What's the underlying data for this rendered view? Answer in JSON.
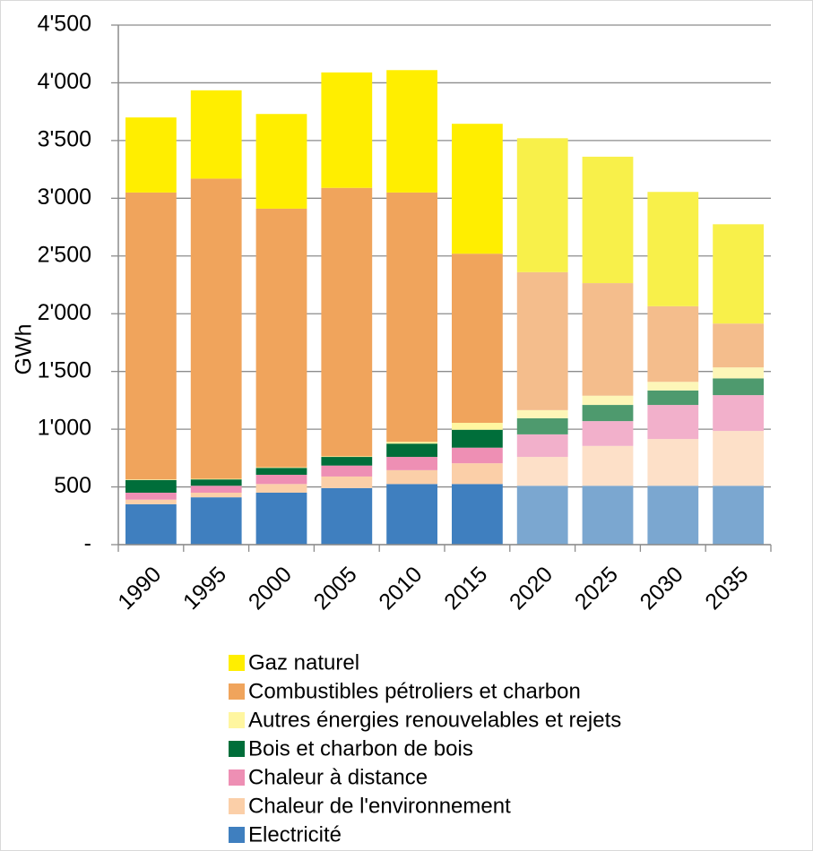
{
  "chart_data": {
    "type": "stacked_bar",
    "y_label": "GWh",
    "categories": [
      "1990",
      "1995",
      "2000",
      "2005",
      "2010",
      "2015",
      "2020",
      "2025",
      "2030",
      "2035"
    ],
    "series": [
      {
        "name": "Gaz naturel",
        "color": "#ffee00",
        "colors": [
          "#ffee00",
          "#ffee00",
          "#ffee00",
          "#ffee00",
          "#ffee00",
          "#ffee00",
          "#f8f04a",
          "#f8f04a",
          "#f8f04a",
          "#f8f04a"
        ],
        "values": [
          650,
          765,
          820,
          1000,
          1060,
          1125,
          1160,
          1095,
          990,
          860
        ]
      },
      {
        "name": "Combustibles pétroliers et charbon",
        "color": "#f0a45c",
        "colors": [
          "#f0a45c",
          "#f0a45c",
          "#f0a45c",
          "#f0a45c",
          "#f0a45c",
          "#f0a45c",
          "#f4bd8c",
          "#f4bd8c",
          "#f4bd8c",
          "#f4bd8c"
        ],
        "values": [
          2485,
          2600,
          2240,
          2325,
          2160,
          1465,
          1195,
          975,
          655,
          380
        ]
      },
      {
        "name": "Autres énergies renouvelables et rejets",
        "color": "#fff6a0",
        "colors": [
          "#fff6a0",
          "#fff6a0",
          "#fff6a0",
          "#fff6a0",
          "#fff6a0",
          "#fff6a0",
          "#fdf6b8",
          "#fdf6b8",
          "#fdf6b8",
          "#fdf6b8"
        ],
        "values": [
          5,
          5,
          5,
          5,
          15,
          60,
          70,
          80,
          75,
          95
        ]
      },
      {
        "name": "Bois et charbon de bois",
        "color": "#006e3a",
        "colors": [
          "#006e3a",
          "#006e3a",
          "#006e3a",
          "#006e3a",
          "#006e3a",
          "#006e3a",
          "#4e9a6e",
          "#4e9a6e",
          "#4e9a6e",
          "#4e9a6e"
        ],
        "values": [
          110,
          55,
          60,
          75,
          115,
          155,
          140,
          140,
          125,
          145
        ]
      },
      {
        "name": "Chaleur à distance",
        "color": "#ee8fb4",
        "colors": [
          "#ee8fb4",
          "#ee8fb4",
          "#ee8fb4",
          "#ee8fb4",
          "#ee8fb4",
          "#ee8fb4",
          "#f2b0cb",
          "#f2b0cb",
          "#f2b0cb",
          "#f2b0cb"
        ],
        "values": [
          60,
          60,
          80,
          95,
          115,
          135,
          195,
          215,
          295,
          310
        ]
      },
      {
        "name": "Chaleur de l'environnement",
        "color": "#fbcfa8",
        "colors": [
          "#fbcfa8",
          "#fbcfa8",
          "#fbcfa8",
          "#fbcfa8",
          "#fbcfa8",
          "#fbcfa8",
          "#fde0c8",
          "#fde0c8",
          "#fde0c8",
          "#fde0c8"
        ],
        "values": [
          40,
          40,
          75,
          100,
          120,
          180,
          250,
          345,
          405,
          475
        ]
      },
      {
        "name": "Electricité",
        "color": "#3f7fbf",
        "colors": [
          "#3f7fbf",
          "#3f7fbf",
          "#3f7fbf",
          "#3f7fbf",
          "#3f7fbf",
          "#3f7fbf",
          "#7ba7d0",
          "#7ba7d0",
          "#7ba7d0",
          "#7ba7d0"
        ],
        "values": [
          350,
          410,
          450,
          490,
          525,
          525,
          510,
          510,
          510,
          510
        ]
      }
    ],
    "ylim": [
      0,
      4500
    ],
    "yticks": [
      {
        "value": 0,
        "label": "-"
      },
      500,
      {
        "value": 1000,
        "label": "1'000"
      },
      {
        "value": 1500,
        "label": "1'500"
      },
      {
        "value": 2000,
        "label": "2'000"
      },
      {
        "value": 2500,
        "label": "2'500"
      },
      {
        "value": 3000,
        "label": "3'000"
      },
      {
        "value": 3500,
        "label": "3'500"
      },
      {
        "value": 4000,
        "label": "4'000"
      },
      {
        "value": 4500,
        "label": "4'500"
      }
    ],
    "grid": true
  }
}
